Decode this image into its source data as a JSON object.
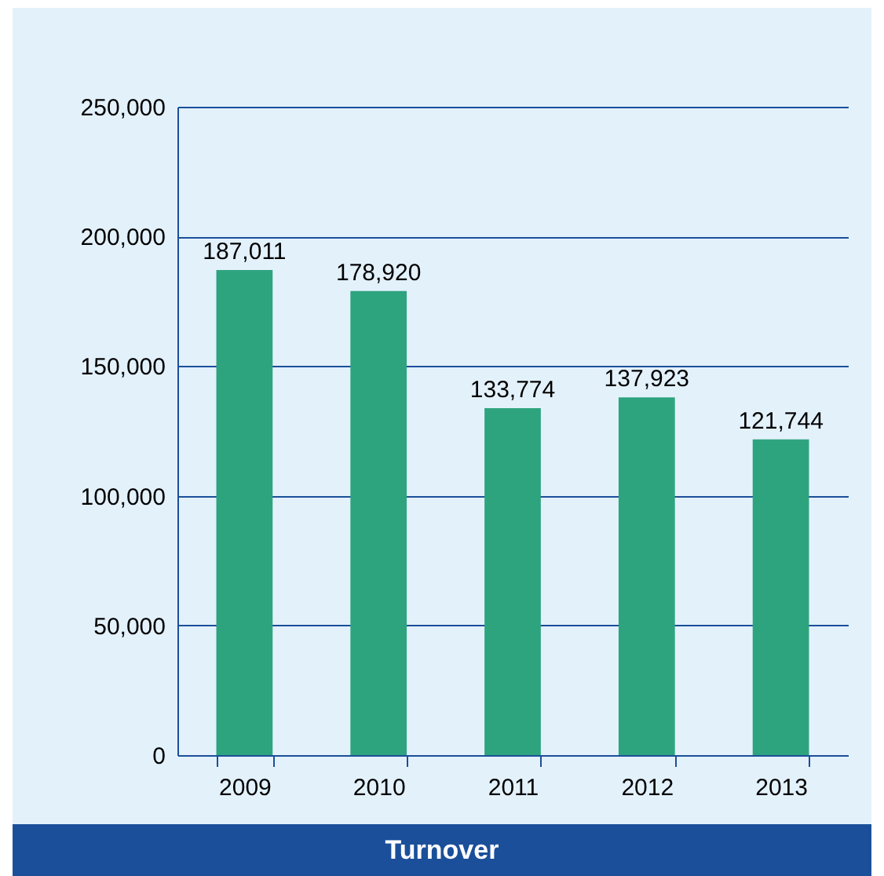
{
  "chart_data": {
    "type": "bar",
    "title": "Turnover",
    "categories": [
      "2009",
      "2010",
      "2011",
      "2012",
      "2013"
    ],
    "values": [
      187011,
      178920,
      133774,
      137923,
      121744
    ],
    "value_labels": [
      "187,011",
      "178,920",
      "133,774",
      "137,923",
      "121,744"
    ],
    "color": "#2ea47e",
    "ylim": [
      0,
      250000
    ],
    "yticks": [
      0,
      {
        "value": 50000,
        "label": "50,000"
      },
      {
        "value": 100000,
        "label": "100,000"
      },
      {
        "value": 150000,
        "label": "150,000"
      },
      {
        "value": 200000,
        "label": "200,000"
      },
      {
        "value": 250000,
        "label": "250,000"
      }
    ],
    "grid": "y"
  }
}
